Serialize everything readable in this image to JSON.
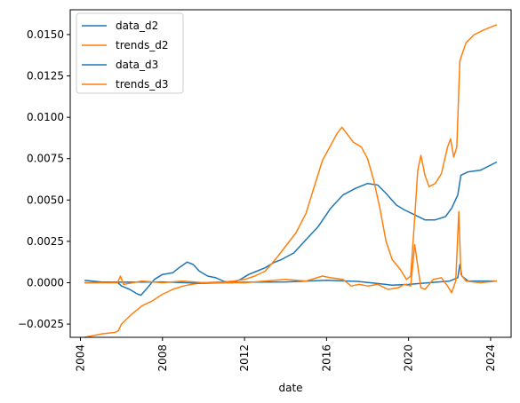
{
  "chart_data": {
    "type": "line",
    "title": "",
    "xlabel": "date",
    "ylabel": "",
    "xlim": [
      2003.5,
      2025.0
    ],
    "ylim": [
      -0.0033,
      0.0165
    ],
    "xticks": [
      2004,
      2008,
      2012,
      2016,
      2020,
      2024
    ],
    "xtick_labels": [
      "2004",
      "2008",
      "2012",
      "2016",
      "2020",
      "2024"
    ],
    "yticks": [
      -0.0025,
      0.0,
      0.0025,
      0.005,
      0.0075,
      0.01,
      0.0125,
      0.015
    ],
    "ytick_labels": [
      "−0.0025",
      "0.0000",
      "0.0025",
      "0.0050",
      "0.0075",
      "0.0100",
      "0.0125",
      "0.0150"
    ],
    "grid": false,
    "legend_position": "top-left",
    "series": [
      {
        "name": "data_d2",
        "color": "#1f77b4",
        "points": [
          [
            2004.2,
            0.00015
          ],
          [
            2005.0,
            5e-05
          ],
          [
            2005.8,
            3e-05
          ],
          [
            2006.0,
            -0.0002
          ],
          [
            2006.4,
            -0.0004
          ],
          [
            2006.8,
            -0.0007
          ],
          [
            2006.95,
            -0.00075
          ],
          [
            2007.2,
            -0.0004
          ],
          [
            2007.6,
            0.0002
          ],
          [
            2008.0,
            0.0005
          ],
          [
            2008.5,
            0.0006
          ],
          [
            2008.8,
            0.0009
          ],
          [
            2009.2,
            0.00125
          ],
          [
            2009.5,
            0.0011
          ],
          [
            2009.8,
            0.0007
          ],
          [
            2010.2,
            0.0004
          ],
          [
            2010.6,
            0.0003
          ],
          [
            2011.0,
            8e-05
          ],
          [
            2011.4,
            0.0
          ],
          [
            2011.8,
            0.0002
          ],
          [
            2012.2,
            0.0005
          ],
          [
            2012.6,
            0.0007
          ],
          [
            2013.0,
            0.0009
          ],
          [
            2013.4,
            0.0012
          ],
          [
            2013.8,
            0.0014
          ],
          [
            2014.4,
            0.0018
          ],
          [
            2015.0,
            0.0026
          ],
          [
            2015.6,
            0.0034
          ],
          [
            2016.2,
            0.0045
          ],
          [
            2016.8,
            0.0053
          ],
          [
            2017.4,
            0.0057
          ],
          [
            2018.0,
            0.006
          ],
          [
            2018.5,
            0.0059
          ],
          [
            2018.9,
            0.0054
          ],
          [
            2019.4,
            0.0047
          ],
          [
            2019.8,
            0.0044
          ],
          [
            2020.3,
            0.0041
          ],
          [
            2020.8,
            0.0038
          ],
          [
            2021.3,
            0.0038
          ],
          [
            2021.8,
            0.004
          ],
          [
            2022.1,
            0.0045
          ],
          [
            2022.4,
            0.0053
          ],
          [
            2022.55,
            0.0065
          ],
          [
            2022.9,
            0.0067
          ],
          [
            2023.5,
            0.0068
          ],
          [
            2024.3,
            0.0073
          ]
        ]
      },
      {
        "name": "trends_d2",
        "color": "#ff7f0e",
        "points": [
          [
            2004.2,
            -0.0033
          ],
          [
            2005.0,
            -0.0031
          ],
          [
            2005.7,
            -0.003
          ],
          [
            2005.85,
            -0.0029
          ],
          [
            2006.0,
            -0.0025
          ],
          [
            2006.5,
            -0.0019
          ],
          [
            2007.0,
            -0.0014
          ],
          [
            2007.5,
            -0.0011
          ],
          [
            2008.0,
            -0.0007
          ],
          [
            2008.5,
            -0.0004
          ],
          [
            2009.0,
            -0.0002
          ],
          [
            2009.5,
            -8e-05
          ],
          [
            2010.0,
            0.0
          ],
          [
            2010.5,
            3e-05
          ],
          [
            2011.0,
            5e-05
          ],
          [
            2011.5,
            0.0001
          ],
          [
            2012.0,
            0.0002
          ],
          [
            2012.5,
            0.0004
          ],
          [
            2013.0,
            0.0007
          ],
          [
            2013.5,
            0.0014
          ],
          [
            2014.0,
            0.0022
          ],
          [
            2014.5,
            0.003
          ],
          [
            2015.0,
            0.0042
          ],
          [
            2015.4,
            0.0058
          ],
          [
            2015.8,
            0.0074
          ],
          [
            2016.2,
            0.0083
          ],
          [
            2016.5,
            0.009
          ],
          [
            2016.75,
            0.0094
          ],
          [
            2017.0,
            0.009
          ],
          [
            2017.3,
            0.0085
          ],
          [
            2017.7,
            0.0082
          ],
          [
            2018.0,
            0.0075
          ],
          [
            2018.3,
            0.0062
          ],
          [
            2018.6,
            0.0045
          ],
          [
            2018.9,
            0.0025
          ],
          [
            2019.2,
            0.0014
          ],
          [
            2019.6,
            0.0008
          ],
          [
            2019.9,
            0.0002
          ],
          [
            2020.1,
            0.0004
          ],
          [
            2020.25,
            0.003
          ],
          [
            2020.45,
            0.0068
          ],
          [
            2020.6,
            0.0077
          ],
          [
            2020.8,
            0.0065
          ],
          [
            2021.0,
            0.0058
          ],
          [
            2021.3,
            0.006
          ],
          [
            2021.6,
            0.0066
          ],
          [
            2021.9,
            0.0082
          ],
          [
            2022.05,
            0.0087
          ],
          [
            2022.2,
            0.0076
          ],
          [
            2022.35,
            0.0082
          ],
          [
            2022.5,
            0.0134
          ],
          [
            2022.8,
            0.0145
          ],
          [
            2023.2,
            0.015
          ],
          [
            2023.7,
            0.0153
          ],
          [
            2024.3,
            0.0156
          ]
        ]
      },
      {
        "name": "data_d3",
        "color": "#1f77b4",
        "points": [
          [
            2004.2,
            0.0
          ],
          [
            2006.0,
            3e-05
          ],
          [
            2008.0,
            5e-05
          ],
          [
            2010.0,
            -3e-05
          ],
          [
            2012.0,
            3e-05
          ],
          [
            2014.0,
            5e-05
          ],
          [
            2016.0,
            0.00015
          ],
          [
            2017.5,
            8e-05
          ],
          [
            2018.5,
            -5e-05
          ],
          [
            2019.2,
            -0.00015
          ],
          [
            2020.0,
            -0.0001
          ],
          [
            2021.0,
            0.0
          ],
          [
            2022.0,
            0.0001
          ],
          [
            2022.4,
            0.0003
          ],
          [
            2022.5,
            0.0011
          ],
          [
            2022.6,
            0.0004
          ],
          [
            2022.9,
            0.0001
          ],
          [
            2024.3,
            0.0001
          ]
        ]
      },
      {
        "name": "trends_d3",
        "color": "#ff7f0e",
        "points": [
          [
            2004.2,
            0.0
          ],
          [
            2005.8,
            0.0
          ],
          [
            2005.95,
            0.0004
          ],
          [
            2006.1,
            -0.0001
          ],
          [
            2007.0,
            0.0001
          ],
          [
            2008.0,
            0.0
          ],
          [
            2009.0,
            0.0001
          ],
          [
            2010.0,
            0.0
          ],
          [
            2011.0,
            0.0
          ],
          [
            2012.0,
            0.0
          ],
          [
            2013.0,
            0.0001
          ],
          [
            2014.0,
            0.0002
          ],
          [
            2015.0,
            0.0001
          ],
          [
            2015.8,
            0.0004
          ],
          [
            2016.2,
            0.0003
          ],
          [
            2016.8,
            0.0002
          ],
          [
            2017.2,
            -0.0002
          ],
          [
            2017.6,
            -0.0001
          ],
          [
            2018.0,
            -0.0002
          ],
          [
            2018.5,
            -0.0001
          ],
          [
            2019.0,
            -0.0004
          ],
          [
            2019.5,
            -0.0003
          ],
          [
            2019.8,
            -0.0001
          ],
          [
            2020.1,
            -0.0002
          ],
          [
            2020.3,
            0.0023
          ],
          [
            2020.45,
            0.001
          ],
          [
            2020.6,
            -0.0003
          ],
          [
            2020.8,
            -0.0004
          ],
          [
            2021.2,
            0.0002
          ],
          [
            2021.6,
            0.0003
          ],
          [
            2021.9,
            -0.0002
          ],
          [
            2022.1,
            -0.0006
          ],
          [
            2022.3,
            0.0001
          ],
          [
            2022.45,
            0.0043
          ],
          [
            2022.55,
            0.0005
          ],
          [
            2022.8,
            0.0001
          ],
          [
            2023.5,
            0.0
          ],
          [
            2024.3,
            0.0001
          ]
        ]
      }
    ]
  }
}
